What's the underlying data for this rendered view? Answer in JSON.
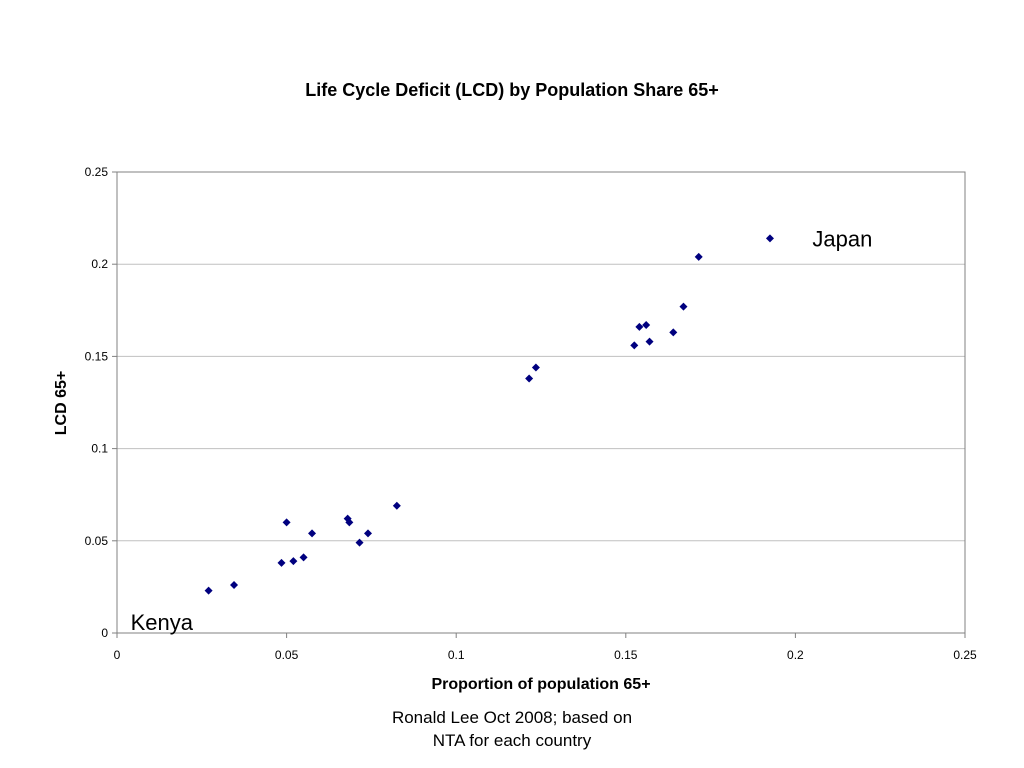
{
  "chart_data": {
    "type": "scatter",
    "title": "Life Cycle Deficit (LCD) by Population Share 65+",
    "xlabel": "Proportion of population 65+",
    "ylabel": "LCD 65+",
    "xlim": [
      0,
      0.25
    ],
    "ylim": [
      0,
      0.25
    ],
    "x_ticks": [
      "0",
      "0.05",
      "0.1",
      "0.15",
      "0.2",
      "0.25"
    ],
    "y_ticks": [
      "0",
      "0.05",
      "0.1",
      "0.15",
      "0.2",
      "0.25"
    ],
    "grid": "horizontal",
    "legend": "none",
    "marker_color": "#00007F",
    "points": [
      {
        "x": 0.027,
        "y": 0.023
      },
      {
        "x": 0.0345,
        "y": 0.026
      },
      {
        "x": 0.0485,
        "y": 0.038
      },
      {
        "x": 0.05,
        "y": 0.06
      },
      {
        "x": 0.052,
        "y": 0.039
      },
      {
        "x": 0.055,
        "y": 0.041
      },
      {
        "x": 0.0575,
        "y": 0.054
      },
      {
        "x": 0.068,
        "y": 0.062
      },
      {
        "x": 0.0685,
        "y": 0.06
      },
      {
        "x": 0.0715,
        "y": 0.049
      },
      {
        "x": 0.074,
        "y": 0.054
      },
      {
        "x": 0.0825,
        "y": 0.069
      },
      {
        "x": 0.1215,
        "y": 0.138
      },
      {
        "x": 0.1235,
        "y": 0.144
      },
      {
        "x": 0.1525,
        "y": 0.156
      },
      {
        "x": 0.154,
        "y": 0.166
      },
      {
        "x": 0.156,
        "y": 0.167
      },
      {
        "x": 0.157,
        "y": 0.158
      },
      {
        "x": 0.164,
        "y": 0.163
      },
      {
        "x": 0.167,
        "y": 0.177
      },
      {
        "x": 0.1715,
        "y": 0.204
      },
      {
        "x": 0.1925,
        "y": 0.214
      }
    ],
    "annotations": [
      {
        "text": "Japan",
        "x": 0.205,
        "y": 0.214
      },
      {
        "text": "Kenya",
        "x": 0.004,
        "y": 0.006
      }
    ]
  },
  "source_note": {
    "line1": "Ronald Lee Oct 2008; based on",
    "line2": "NTA for each country"
  }
}
